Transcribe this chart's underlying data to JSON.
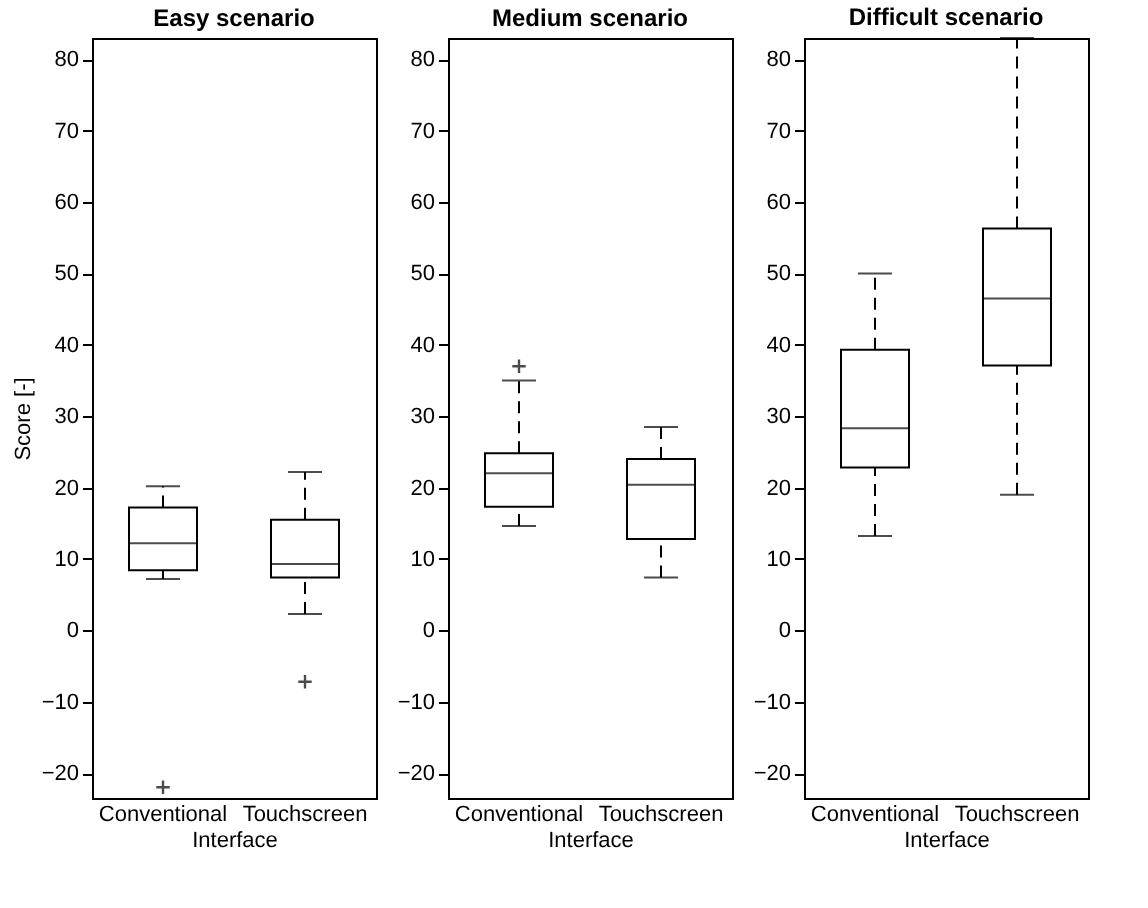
{
  "chart_data": [
    {
      "type": "box",
      "title": "Easy scenario",
      "xlabel": "Interface",
      "ylabel": "Score [-]",
      "categories": [
        "Conventional",
        "Touchscreen"
      ],
      "boxes": [
        {
          "low": 7.2,
          "q1": 8.4,
          "median": 12.2,
          "q3": 17.2,
          "high": 20.2,
          "outliers": [
            -22
          ]
        },
        {
          "low": 2.3,
          "q1": 7.4,
          "median": 9.3,
          "q3": 15.5,
          "high": 22.2,
          "outliers": [
            -7.2
          ]
        }
      ],
      "ylim": [
        -23.5,
        83
      ],
      "yticks": [
        -20,
        -10,
        0,
        10,
        20,
        30,
        40,
        50,
        60,
        70,
        80
      ],
      "grid": false,
      "marker": "cross",
      "line_style": "dashed"
    },
    {
      "type": "box",
      "title": "Medium scenario",
      "xlabel": "Interface",
      "categories": [
        "Conventional",
        "Touchscreen"
      ],
      "boxes": [
        {
          "low": 14.6,
          "q1": 17.3,
          "median": 22,
          "q3": 24.8,
          "high": 35,
          "outliers": [
            37
          ]
        },
        {
          "low": 7.4,
          "q1": 12.8,
          "median": 20.4,
          "q3": 24,
          "high": 28.5
        }
      ],
      "ylim": [
        -23.5,
        83
      ],
      "yticks": [
        -20,
        -10,
        0,
        10,
        20,
        30,
        40,
        50,
        60,
        70,
        80
      ],
      "grid": false,
      "marker": "cross",
      "line_style": "dashed"
    },
    {
      "type": "box",
      "title": "Difficult scenario",
      "xlabel": "Interface",
      "categories": [
        "Conventional",
        "Touchscreen"
      ],
      "boxes": [
        {
          "low": 13.2,
          "q1": 22.8,
          "median": 28.3,
          "q3": 39.3,
          "high": 50
        },
        {
          "low": 19,
          "q1": 37.1,
          "median": 46.5,
          "q3": 56.3,
          "high": 83
        }
      ],
      "ylim": [
        -23.5,
        83
      ],
      "yticks": [
        -20,
        -10,
        0,
        10,
        20,
        30,
        40,
        50,
        60,
        70,
        80
      ],
      "grid": false,
      "marker": "cross",
      "line_style": "dashed"
    }
  ]
}
